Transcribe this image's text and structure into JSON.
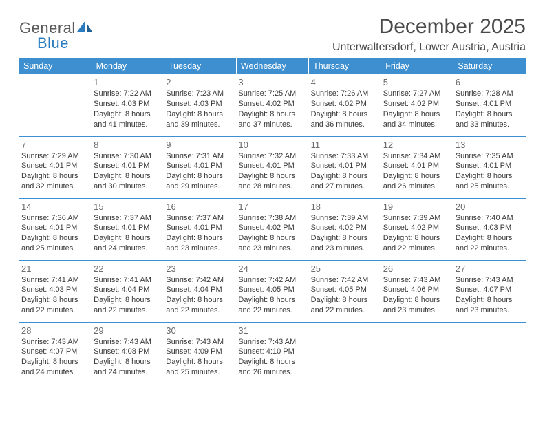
{
  "logo": {
    "general": "General",
    "blue": "Blue"
  },
  "title": "December 2025",
  "subtitle": "Unterwaltersdorf, Lower Austria, Austria",
  "colors": {
    "header_bg": "#3e8fcf",
    "header_fg": "#ffffff",
    "rule": "#3e8fcf",
    "text": "#3a3a3a",
    "daynum": "#6b6b6b",
    "logo_gray": "#5a5a5a",
    "logo_blue": "#2b7bbf",
    "background": "#ffffff"
  },
  "fonts": {
    "title_size_pt": 22,
    "subtitle_size_pt": 12,
    "header_size_pt": 9,
    "cell_size_pt": 8,
    "daynum_size_pt": 10
  },
  "dayNames": [
    "Sunday",
    "Monday",
    "Tuesday",
    "Wednesday",
    "Thursday",
    "Friday",
    "Saturday"
  ],
  "weeks": [
    [
      null,
      {
        "n": "1",
        "sr": "7:22 AM",
        "ss": "4:03 PM",
        "dl": "8 hours and 41 minutes."
      },
      {
        "n": "2",
        "sr": "7:23 AM",
        "ss": "4:03 PM",
        "dl": "8 hours and 39 minutes."
      },
      {
        "n": "3",
        "sr": "7:25 AM",
        "ss": "4:02 PM",
        "dl": "8 hours and 37 minutes."
      },
      {
        "n": "4",
        "sr": "7:26 AM",
        "ss": "4:02 PM",
        "dl": "8 hours and 36 minutes."
      },
      {
        "n": "5",
        "sr": "7:27 AM",
        "ss": "4:02 PM",
        "dl": "8 hours and 34 minutes."
      },
      {
        "n": "6",
        "sr": "7:28 AM",
        "ss": "4:01 PM",
        "dl": "8 hours and 33 minutes."
      }
    ],
    [
      {
        "n": "7",
        "sr": "7:29 AM",
        "ss": "4:01 PM",
        "dl": "8 hours and 32 minutes."
      },
      {
        "n": "8",
        "sr": "7:30 AM",
        "ss": "4:01 PM",
        "dl": "8 hours and 30 minutes."
      },
      {
        "n": "9",
        "sr": "7:31 AM",
        "ss": "4:01 PM",
        "dl": "8 hours and 29 minutes."
      },
      {
        "n": "10",
        "sr": "7:32 AM",
        "ss": "4:01 PM",
        "dl": "8 hours and 28 minutes."
      },
      {
        "n": "11",
        "sr": "7:33 AM",
        "ss": "4:01 PM",
        "dl": "8 hours and 27 minutes."
      },
      {
        "n": "12",
        "sr": "7:34 AM",
        "ss": "4:01 PM",
        "dl": "8 hours and 26 minutes."
      },
      {
        "n": "13",
        "sr": "7:35 AM",
        "ss": "4:01 PM",
        "dl": "8 hours and 25 minutes."
      }
    ],
    [
      {
        "n": "14",
        "sr": "7:36 AM",
        "ss": "4:01 PM",
        "dl": "8 hours and 25 minutes."
      },
      {
        "n": "15",
        "sr": "7:37 AM",
        "ss": "4:01 PM",
        "dl": "8 hours and 24 minutes."
      },
      {
        "n": "16",
        "sr": "7:37 AM",
        "ss": "4:01 PM",
        "dl": "8 hours and 23 minutes."
      },
      {
        "n": "17",
        "sr": "7:38 AM",
        "ss": "4:02 PM",
        "dl": "8 hours and 23 minutes."
      },
      {
        "n": "18",
        "sr": "7:39 AM",
        "ss": "4:02 PM",
        "dl": "8 hours and 23 minutes."
      },
      {
        "n": "19",
        "sr": "7:39 AM",
        "ss": "4:02 PM",
        "dl": "8 hours and 22 minutes."
      },
      {
        "n": "20",
        "sr": "7:40 AM",
        "ss": "4:03 PM",
        "dl": "8 hours and 22 minutes."
      }
    ],
    [
      {
        "n": "21",
        "sr": "7:41 AM",
        "ss": "4:03 PM",
        "dl": "8 hours and 22 minutes."
      },
      {
        "n": "22",
        "sr": "7:41 AM",
        "ss": "4:04 PM",
        "dl": "8 hours and 22 minutes."
      },
      {
        "n": "23",
        "sr": "7:42 AM",
        "ss": "4:04 PM",
        "dl": "8 hours and 22 minutes."
      },
      {
        "n": "24",
        "sr": "7:42 AM",
        "ss": "4:05 PM",
        "dl": "8 hours and 22 minutes."
      },
      {
        "n": "25",
        "sr": "7:42 AM",
        "ss": "4:05 PM",
        "dl": "8 hours and 22 minutes."
      },
      {
        "n": "26",
        "sr": "7:43 AM",
        "ss": "4:06 PM",
        "dl": "8 hours and 23 minutes."
      },
      {
        "n": "27",
        "sr": "7:43 AM",
        "ss": "4:07 PM",
        "dl": "8 hours and 23 minutes."
      }
    ],
    [
      {
        "n": "28",
        "sr": "7:43 AM",
        "ss": "4:07 PM",
        "dl": "8 hours and 24 minutes."
      },
      {
        "n": "29",
        "sr": "7:43 AM",
        "ss": "4:08 PM",
        "dl": "8 hours and 24 minutes."
      },
      {
        "n": "30",
        "sr": "7:43 AM",
        "ss": "4:09 PM",
        "dl": "8 hours and 25 minutes."
      },
      {
        "n": "31",
        "sr": "7:43 AM",
        "ss": "4:10 PM",
        "dl": "8 hours and 26 minutes."
      },
      null,
      null,
      null
    ]
  ],
  "labels": {
    "sunrise": "Sunrise:",
    "sunset": "Sunset:",
    "daylight": "Daylight:"
  }
}
